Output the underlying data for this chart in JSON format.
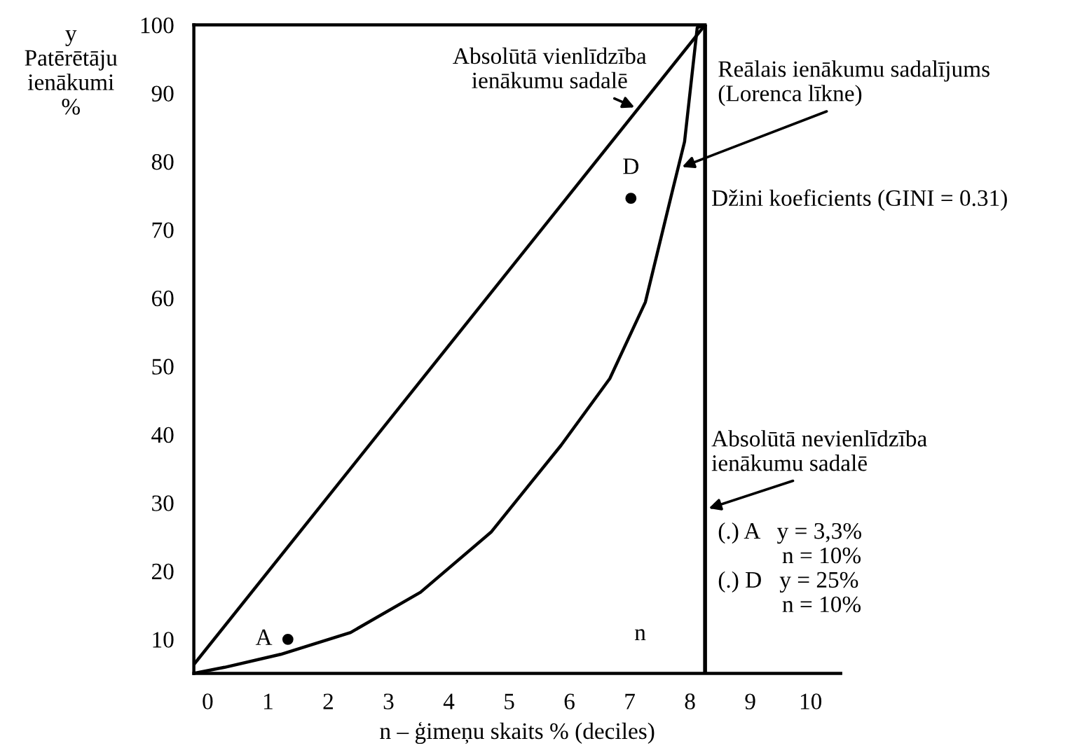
{
  "chart_data": {
    "type": "line",
    "xlabel": "n – ģimeņu skaits % (deciles)",
    "ylabel": "y\nPatērētāju\nienākumi\n%",
    "xlim": [
      -0.23,
      10.5
    ],
    "ylim": [
      5,
      100
    ],
    "xticks": [
      0,
      1,
      2,
      3,
      4,
      5,
      6,
      7,
      8,
      9,
      10
    ],
    "yticks": [
      10,
      20,
      30,
      40,
      50,
      60,
      70,
      80,
      90,
      100
    ],
    "grid": false,
    "series": [
      {
        "color": "#000000",
        "marker": "none",
        "line_style": "solid",
        "x": [
          -0.23,
          8.25
        ],
        "values": [
          6.3,
          100
        ]
      },
      {
        "color": "#000000",
        "marker": "none",
        "line_style": "solid",
        "x": [
          -0.19,
          0.28,
          1.21,
          2.37,
          3.53,
          4.7,
          5.86,
          6.67,
          7.26,
          7.72,
          7.91,
          8.12,
          8.25
        ],
        "values": [
          5.1,
          5.9,
          7.8,
          11.0,
          16.9,
          25.7,
          38.4,
          48.2,
          59.4,
          76.1,
          82.9,
          99.6,
          100
        ]
      },
      {
        "type": "scatter",
        "color": "#000000",
        "marker": "circle",
        "x": [
          1.33,
          7.02
        ],
        "values": [
          10,
          74.6
        ]
      }
    ],
    "ref_lines": [
      {
        "axis": "x",
        "value": 8.25,
        "color": "#000000"
      }
    ],
    "annotations": [
      {
        "text": "Absolūtā vienlīdzība\nienākumu sadalē",
        "x": 7.14,
        "y": 87.7
      },
      {
        "text": "Reālais ienākumu sadalījums\n(Lorenca līkne)",
        "x": 7.81,
        "y": 79
      },
      "Džini koeficients (GINI = 0.31)",
      {
        "text": "Absolūtā nevienlīdzība\nienākumu sadalē",
        "x": 8.25,
        "y": 29
      },
      "(.) A   y = 3,3%\n           n = 10%\n(.) D   y = 25%\n           n = 10%",
      {
        "text": "A",
        "x": 1.33,
        "y": 10
      },
      {
        "text": "D",
        "x": 7.02,
        "y": 74.6
      },
      "n"
    ]
  }
}
